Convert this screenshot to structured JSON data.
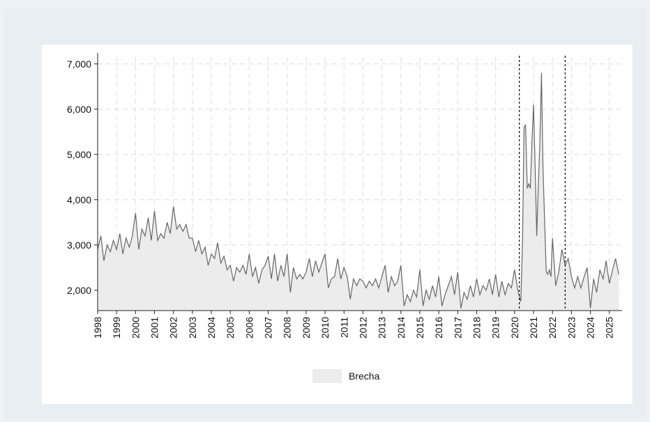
{
  "chart_data": {
    "type": "area",
    "title": "",
    "xlabel": "",
    "ylabel": "",
    "x_ticks": [
      "1998",
      "1999",
      "2000",
      "2001",
      "2002",
      "2003",
      "2004",
      "2005",
      "2006",
      "2007",
      "2008",
      "2009",
      "2010",
      "2011",
      "2012",
      "2013",
      "2014",
      "2015",
      "2016",
      "2017",
      "2018",
      "2019",
      "2020",
      "2021",
      "2022",
      "2023",
      "2024",
      "2025"
    ],
    "y_ticks": [
      2000,
      3000,
      4000,
      5000,
      6000,
      7000
    ],
    "y_tick_labels": [
      "2,000",
      "3,000",
      "4,000",
      "5,000",
      "6,000",
      "7,000"
    ],
    "ylim": [
      1550,
      7150
    ],
    "xlim": [
      1998.0,
      2025.6
    ],
    "grid": true,
    "vertical_lines": [
      2020.25,
      2022.67
    ],
    "colors": {
      "line": "#666666",
      "fill": "#ececec",
      "grid": "#e3e3e3",
      "vline": "#111111"
    },
    "series": [
      {
        "name": "Brecha",
        "points": [
          [
            1998.0,
            2900
          ],
          [
            1998.17,
            3200
          ],
          [
            1998.33,
            2650
          ],
          [
            1998.5,
            3000
          ],
          [
            1998.67,
            2850
          ],
          [
            1998.83,
            3100
          ],
          [
            1999.0,
            2900
          ],
          [
            1999.17,
            3250
          ],
          [
            1999.33,
            2800
          ],
          [
            1999.5,
            3150
          ],
          [
            1999.67,
            2950
          ],
          [
            1999.83,
            3200
          ],
          [
            2000.0,
            3700
          ],
          [
            2000.17,
            2900
          ],
          [
            2000.33,
            3350
          ],
          [
            2000.5,
            3200
          ],
          [
            2000.67,
            3600
          ],
          [
            2000.83,
            3100
          ],
          [
            2001.0,
            3750
          ],
          [
            2001.17,
            3100
          ],
          [
            2001.33,
            3250
          ],
          [
            2001.5,
            3150
          ],
          [
            2001.67,
            3500
          ],
          [
            2001.83,
            3250
          ],
          [
            2002.0,
            3850
          ],
          [
            2002.17,
            3350
          ],
          [
            2002.33,
            3450
          ],
          [
            2002.5,
            3300
          ],
          [
            2002.67,
            3450
          ],
          [
            2002.83,
            3150
          ],
          [
            2003.0,
            3150
          ],
          [
            2003.17,
            2850
          ],
          [
            2003.33,
            3100
          ],
          [
            2003.5,
            2800
          ],
          [
            2003.67,
            2950
          ],
          [
            2003.83,
            2550
          ],
          [
            2004.0,
            2800
          ],
          [
            2004.17,
            2700
          ],
          [
            2004.33,
            3050
          ],
          [
            2004.5,
            2600
          ],
          [
            2004.67,
            2750
          ],
          [
            2004.83,
            2450
          ],
          [
            2005.0,
            2550
          ],
          [
            2005.17,
            2200
          ],
          [
            2005.33,
            2500
          ],
          [
            2005.5,
            2400
          ],
          [
            2005.67,
            2550
          ],
          [
            2005.83,
            2350
          ],
          [
            2006.0,
            2800
          ],
          [
            2006.17,
            2300
          ],
          [
            2006.33,
            2500
          ],
          [
            2006.5,
            2150
          ],
          [
            2006.67,
            2450
          ],
          [
            2006.83,
            2550
          ],
          [
            2007.0,
            2750
          ],
          [
            2007.17,
            2250
          ],
          [
            2007.33,
            2800
          ],
          [
            2007.5,
            2200
          ],
          [
            2007.67,
            2550
          ],
          [
            2007.83,
            2300
          ],
          [
            2008.0,
            2800
          ],
          [
            2008.17,
            1950
          ],
          [
            2008.33,
            2500
          ],
          [
            2008.5,
            2250
          ],
          [
            2008.67,
            2350
          ],
          [
            2008.83,
            2250
          ],
          [
            2009.0,
            2400
          ],
          [
            2009.17,
            2700
          ],
          [
            2009.33,
            2300
          ],
          [
            2009.5,
            2650
          ],
          [
            2009.67,
            2400
          ],
          [
            2009.83,
            2600
          ],
          [
            2010.0,
            2800
          ],
          [
            2010.17,
            2050
          ],
          [
            2010.33,
            2250
          ],
          [
            2010.5,
            2300
          ],
          [
            2010.67,
            2700
          ],
          [
            2010.83,
            2250
          ],
          [
            2011.0,
            2500
          ],
          [
            2011.17,
            2300
          ],
          [
            2011.33,
            1800
          ],
          [
            2011.5,
            2250
          ],
          [
            2011.67,
            2100
          ],
          [
            2011.83,
            2250
          ],
          [
            2012.0,
            2200
          ],
          [
            2012.17,
            2050
          ],
          [
            2012.33,
            2200
          ],
          [
            2012.5,
            2100
          ],
          [
            2012.67,
            2250
          ],
          [
            2012.83,
            2050
          ],
          [
            2013.0,
            2300
          ],
          [
            2013.17,
            2550
          ],
          [
            2013.33,
            1950
          ],
          [
            2013.5,
            2300
          ],
          [
            2013.67,
            2100
          ],
          [
            2013.83,
            2200
          ],
          [
            2014.0,
            2550
          ],
          [
            2014.17,
            1650
          ],
          [
            2014.33,
            1900
          ],
          [
            2014.5,
            1750
          ],
          [
            2014.67,
            2000
          ],
          [
            2014.83,
            1850
          ],
          [
            2015.0,
            2450
          ],
          [
            2015.17,
            1650
          ],
          [
            2015.33,
            2000
          ],
          [
            2015.5,
            1800
          ],
          [
            2015.67,
            2100
          ],
          [
            2015.83,
            1850
          ],
          [
            2016.0,
            2300
          ],
          [
            2016.17,
            1650
          ],
          [
            2016.33,
            1900
          ],
          [
            2016.5,
            2100
          ],
          [
            2016.67,
            2300
          ],
          [
            2016.83,
            1900
          ],
          [
            2017.0,
            2400
          ],
          [
            2017.17,
            1600
          ],
          [
            2017.33,
            1950
          ],
          [
            2017.5,
            1800
          ],
          [
            2017.67,
            2100
          ],
          [
            2017.83,
            1850
          ],
          [
            2018.0,
            2250
          ],
          [
            2018.17,
            1900
          ],
          [
            2018.33,
            2100
          ],
          [
            2018.5,
            2000
          ],
          [
            2018.67,
            2250
          ],
          [
            2018.83,
            1900
          ],
          [
            2019.0,
            2350
          ],
          [
            2019.17,
            1850
          ],
          [
            2019.33,
            2200
          ],
          [
            2019.5,
            1900
          ],
          [
            2019.67,
            2150
          ],
          [
            2019.83,
            2050
          ],
          [
            2020.0,
            2450
          ],
          [
            2020.17,
            2000
          ],
          [
            2020.33,
            1750
          ],
          [
            2020.42,
            3100
          ],
          [
            2020.5,
            5600
          ],
          [
            2020.58,
            5650
          ],
          [
            2020.67,
            4250
          ],
          [
            2020.75,
            4350
          ],
          [
            2020.83,
            4250
          ],
          [
            2020.92,
            5300
          ],
          [
            2021.0,
            6100
          ],
          [
            2021.08,
            4800
          ],
          [
            2021.17,
            3200
          ],
          [
            2021.25,
            4300
          ],
          [
            2021.33,
            5200
          ],
          [
            2021.42,
            6800
          ],
          [
            2021.5,
            4700
          ],
          [
            2021.58,
            3600
          ],
          [
            2021.67,
            2400
          ],
          [
            2021.75,
            2350
          ],
          [
            2021.83,
            2450
          ],
          [
            2021.92,
            2300
          ],
          [
            2022.0,
            3150
          ],
          [
            2022.17,
            2100
          ],
          [
            2022.33,
            2400
          ],
          [
            2022.5,
            2900
          ],
          [
            2022.67,
            2550
          ],
          [
            2022.83,
            2700
          ],
          [
            2023.0,
            2300
          ],
          [
            2023.17,
            2050
          ],
          [
            2023.33,
            2300
          ],
          [
            2023.5,
            2050
          ],
          [
            2023.67,
            2300
          ],
          [
            2023.83,
            2500
          ],
          [
            2024.0,
            1600
          ],
          [
            2024.17,
            2250
          ],
          [
            2024.33,
            1950
          ],
          [
            2024.5,
            2450
          ],
          [
            2024.67,
            2250
          ],
          [
            2024.83,
            2650
          ],
          [
            2025.0,
            2150
          ],
          [
            2025.17,
            2450
          ],
          [
            2025.33,
            2700
          ],
          [
            2025.5,
            2350
          ]
        ]
      }
    ],
    "legend": {
      "position": "bottom",
      "entries": [
        "Brecha"
      ]
    }
  }
}
